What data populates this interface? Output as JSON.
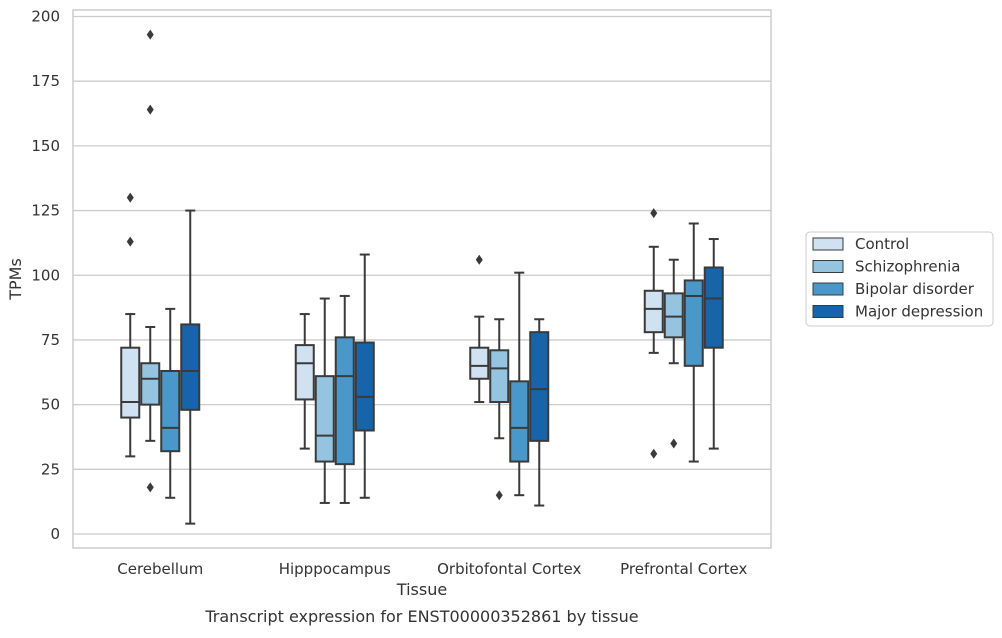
{
  "chart_data": {
    "type": "box",
    "title": "",
    "caption": "Transcript expression for ENST00000352861 by tissue",
    "xlabel": "Tissue",
    "ylabel": "TPMs",
    "ylim": [
      -5,
      202
    ],
    "yticks": [
      0,
      25,
      50,
      75,
      100,
      125,
      150,
      175,
      200
    ],
    "grid": true,
    "legend_position": "right",
    "categories": [
      "Cerebellum",
      "Hipppocampus",
      "Orbitofontal Cortex",
      "Prefrontal Cortex"
    ],
    "series": [
      {
        "name": "Control",
        "color": "#d0e1f2",
        "boxes": [
          {
            "whisker_low": 30,
            "q1": 45,
            "median": 51,
            "q3": 72,
            "whisker_high": 85,
            "outliers": [
              130,
              113
            ]
          },
          {
            "whisker_low": 33,
            "q1": 52,
            "median": 66,
            "q3": 73,
            "whisker_high": 85,
            "outliers": []
          },
          {
            "whisker_low": 51,
            "q1": 60,
            "median": 65,
            "q3": 72,
            "whisker_high": 84,
            "outliers": [
              106
            ]
          },
          {
            "whisker_low": 70,
            "q1": 78,
            "median": 87,
            "q3": 94,
            "whisker_high": 111,
            "outliers": [
              124,
              31
            ]
          }
        ]
      },
      {
        "name": "Schizophrenia",
        "color": "#94c4df",
        "boxes": [
          {
            "whisker_low": 36,
            "q1": 50,
            "median": 60,
            "q3": 66,
            "whisker_high": 80,
            "outliers": [
              193,
              164,
              18
            ]
          },
          {
            "whisker_low": 12,
            "q1": 28,
            "median": 38,
            "q3": 61,
            "whisker_high": 91,
            "outliers": []
          },
          {
            "whisker_low": 37,
            "q1": 51,
            "median": 64,
            "q3": 71,
            "whisker_high": 83,
            "outliers": [
              15
            ]
          },
          {
            "whisker_low": 66,
            "q1": 76,
            "median": 84,
            "q3": 93,
            "whisker_high": 106,
            "outliers": [
              35
            ]
          }
        ]
      },
      {
        "name": "Bipolar disorder",
        "color": "#4a98c9",
        "boxes": [
          {
            "whisker_low": 14,
            "q1": 32,
            "median": 41,
            "q3": 63,
            "whisker_high": 87,
            "outliers": []
          },
          {
            "whisker_low": 12,
            "q1": 27,
            "median": 61,
            "q3": 76,
            "whisker_high": 92,
            "outliers": []
          },
          {
            "whisker_low": 15,
            "q1": 28,
            "median": 41,
            "q3": 59,
            "whisker_high": 101,
            "outliers": []
          },
          {
            "whisker_low": 28,
            "q1": 65,
            "median": 92,
            "q3": 98,
            "whisker_high": 120,
            "outliers": []
          }
        ]
      },
      {
        "name": "Major depression",
        "color": "#1764ab",
        "boxes": [
          {
            "whisker_low": 4,
            "q1": 48,
            "median": 63,
            "q3": 81,
            "whisker_high": 125,
            "outliers": []
          },
          {
            "whisker_low": 14,
            "q1": 40,
            "median": 53,
            "q3": 74,
            "whisker_high": 108,
            "outliers": []
          },
          {
            "whisker_low": 11,
            "q1": 36,
            "median": 56,
            "q3": 78,
            "whisker_high": 83,
            "outliers": []
          },
          {
            "whisker_low": 33,
            "q1": 72,
            "median": 91,
            "q3": 103,
            "whisker_high": 114,
            "outliers": []
          }
        ]
      }
    ]
  }
}
